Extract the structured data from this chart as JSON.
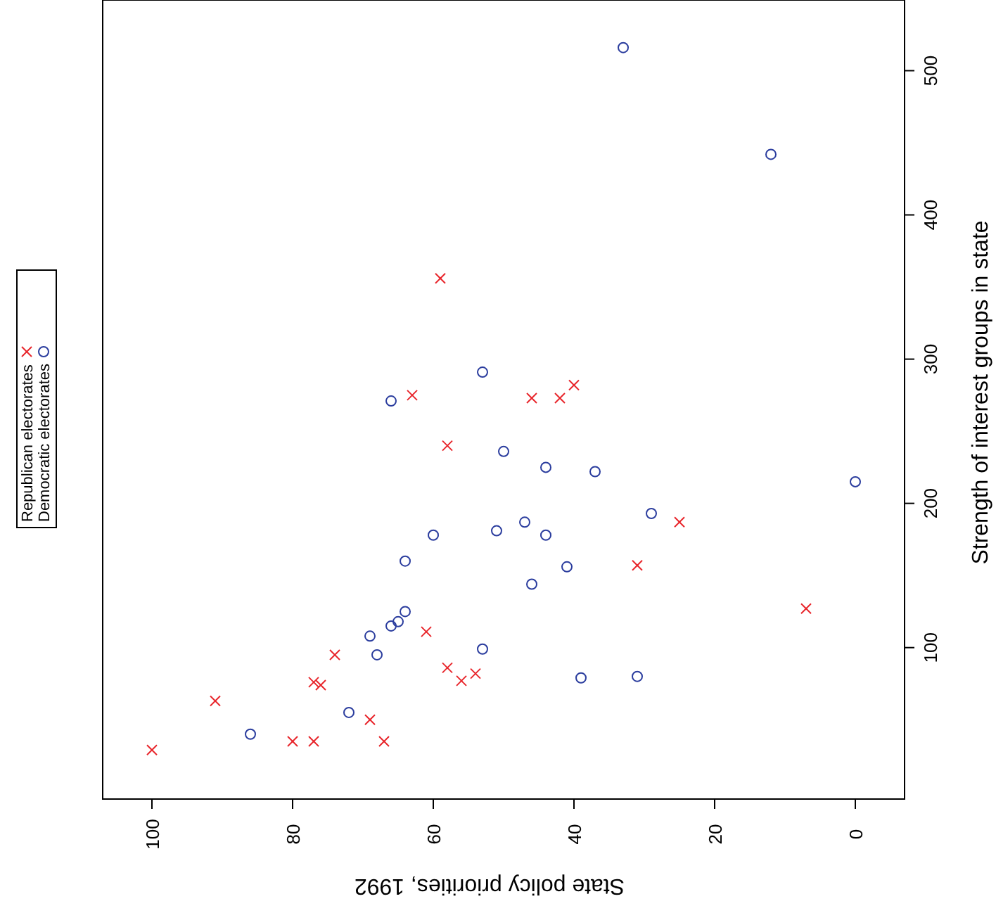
{
  "chart_data": {
    "type": "scatter",
    "xlabel": "State policy priorities, 1992",
    "ylabel": "Strength of interest groups in state",
    "xlim": [
      107,
      -7
    ],
    "xticks": [
      100,
      80,
      60,
      40,
      20,
      0
    ],
    "ylim": [
      -5,
      549
    ],
    "yticks": [
      100,
      200,
      300,
      400,
      500
    ],
    "legend": "left",
    "grid": false,
    "series": [
      {
        "name": "Republican electorates",
        "color": "#e8242a",
        "marker": "cross",
        "x": [
          100,
          91,
          80,
          77,
          77,
          76,
          74,
          69,
          67,
          63,
          61,
          59,
          58,
          58,
          56,
          54,
          46,
          42,
          40,
          31,
          25,
          7
        ],
        "values": [
          29,
          63,
          35,
          35,
          76,
          74,
          95,
          50,
          35,
          275,
          111,
          356,
          240,
          86,
          77,
          82,
          273,
          273,
          282,
          157,
          187,
          127
        ]
      },
      {
        "name": "Democratic electorates",
        "color": "#2b3d9e",
        "marker": "circle",
        "x": [
          86,
          72,
          69,
          68,
          66,
          65,
          64,
          64,
          66,
          60,
          53,
          53,
          51,
          50,
          47,
          46,
          44,
          44,
          41,
          39,
          37,
          31,
          29,
          33,
          12,
          0
        ],
        "values": [
          40,
          55,
          108,
          95,
          115,
          118,
          125,
          160,
          271,
          178,
          291,
          99,
          181,
          236,
          187,
          144,
          178,
          225,
          156,
          79,
          222,
          80,
          193,
          516,
          442,
          215
        ]
      }
    ]
  }
}
